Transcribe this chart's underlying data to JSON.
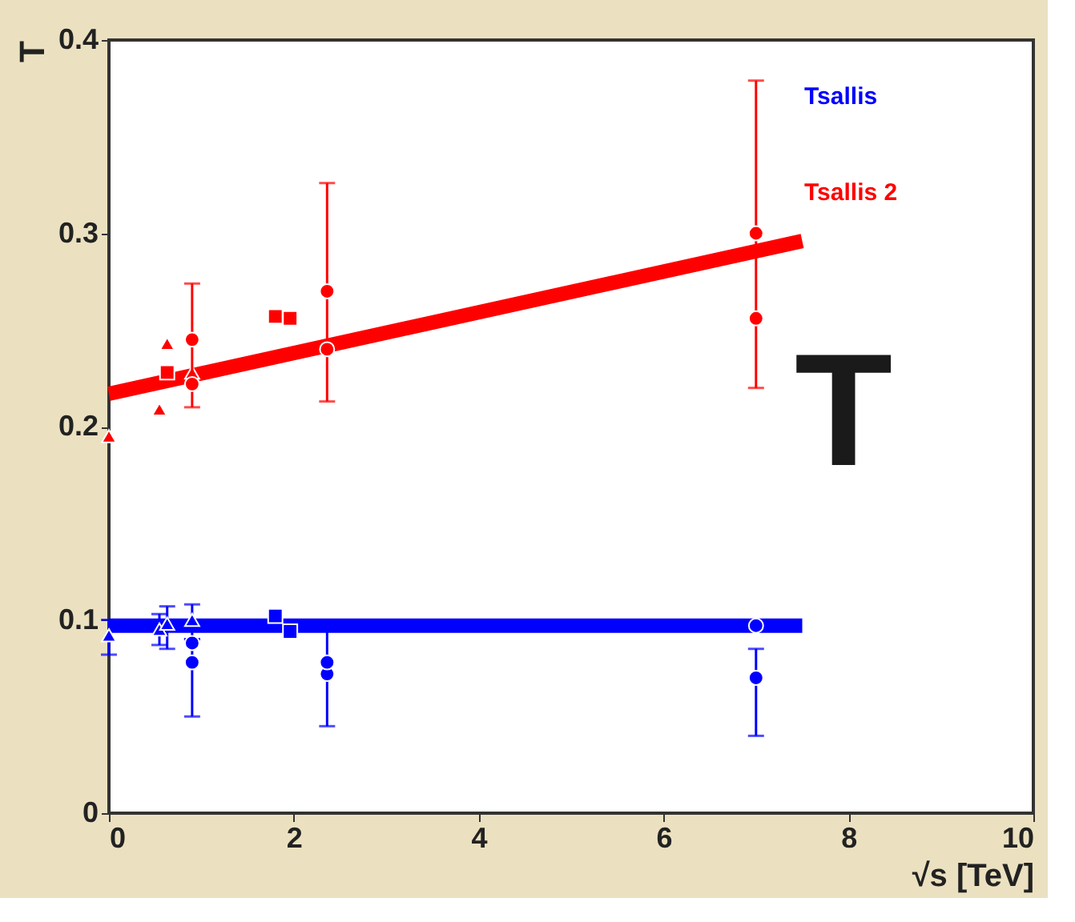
{
  "chart_data": {
    "type": "scatter",
    "xlabel": "√s [TeV]",
    "ylabel": "T",
    "xlim": [
      0,
      10
    ],
    "ylim": [
      0,
      0.4
    ],
    "xticks": [
      0,
      2,
      4,
      6,
      8,
      10
    ],
    "yticks": [
      0,
      0.1,
      0.2,
      0.3,
      0.4
    ],
    "grid": false,
    "legend": "top right",
    "annotations": [
      "T"
    ],
    "series": [
      {
        "name": "Tsallis",
        "type": "line",
        "color": "#0000ff",
        "x": [
          0,
          7.5
        ],
        "values": [
          0.097,
          0.097
        ]
      },
      {
        "name": "Tsallis 2",
        "type": "line",
        "color": "#ff0000",
        "x": [
          0,
          7.5
        ],
        "values": [
          0.217,
          0.296
        ]
      },
      {
        "marker": "triangle",
        "color": "#0000ff",
        "x": [
          0,
          0.546,
          0.63,
          0.9
        ],
        "values": [
          0.092,
          0.095,
          0.098,
          0.1
        ],
        "errors": [
          [
            0.082,
            0.1
          ],
          [
            0.087,
            0.103
          ],
          [
            0.085,
            0.107
          ],
          [
            0.09,
            0.108
          ]
        ]
      },
      {
        "marker": "circle",
        "color": "#0000ff",
        "x": [
          0.9,
          2.36,
          7
        ],
        "values": [
          0.078,
          0.072,
          0.07
        ],
        "errors": [
          [
            0.05,
            0.09
          ],
          [
            0.045,
            0.095
          ],
          [
            0.04,
            0.085
          ]
        ]
      },
      {
        "marker": "circle",
        "color": "#0000ff",
        "x": [
          0.9,
          2.36,
          7
        ],
        "values": [
          0.088,
          0.078,
          0.097
        ]
      },
      {
        "marker": "square",
        "color": "#0000ff",
        "x": [
          1.8,
          1.96
        ],
        "values": [
          0.102,
          0.094
        ]
      },
      {
        "marker": "triangle",
        "color": "#ff0000",
        "x": [
          0,
          0.546,
          0.63,
          0.9
        ],
        "values": [
          0.195,
          0.209,
          0.243,
          0.228
        ]
      },
      {
        "marker": "circle",
        "color": "#ff0000",
        "x": [
          0.9,
          2.36,
          7
        ],
        "values": [
          0.245,
          0.27,
          0.3
        ],
        "errors": [
          [
            0.21,
            0.274
          ],
          [
            0.213,
            0.326
          ],
          [
            0.22,
            0.379
          ]
        ]
      },
      {
        "marker": "circle",
        "color": "#ff0000",
        "x": [
          0.9,
          2.36,
          7
        ],
        "values": [
          0.222,
          0.24,
          0.256
        ]
      },
      {
        "marker": "square",
        "color": "#ff0000",
        "x": [
          0.63,
          1.8,
          1.96
        ],
        "values": [
          0.228,
          0.257,
          0.256
        ]
      }
    ]
  }
}
